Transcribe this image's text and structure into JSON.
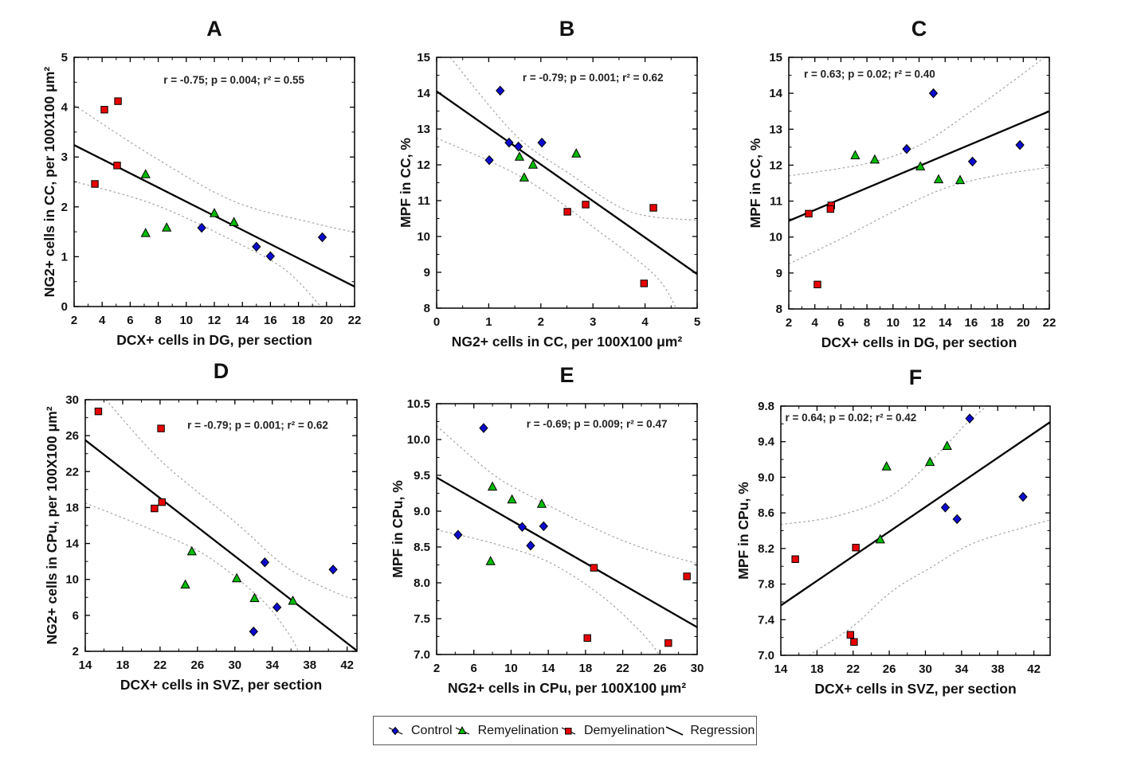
{
  "figure": {
    "background": "#ffffff",
    "colors": {
      "control": "#0b0bd0",
      "remyelination": "#00bb00",
      "demyelination": "#e80000",
      "marker_outline": "#000000",
      "regression_line": "#000000",
      "confidence_band": "#9a9a9a"
    },
    "legend": {
      "items": [
        {
          "label": "Control",
          "marker": "diamond",
          "color": "#0b0bd0"
        },
        {
          "label": "Remyelination",
          "marker": "triangle",
          "color": "#00bb00"
        },
        {
          "label": "Demyelination",
          "marker": "square",
          "color": "#e80000"
        },
        {
          "label": "Regression",
          "marker": "line",
          "color": "#000000"
        }
      ]
    }
  },
  "chart_data": [
    {
      "id": "A",
      "type": "scatter",
      "title": "A",
      "annotation": "r = -0.75; p = 0.004; r² = 0.55",
      "annotation_anchor": [
        0.57,
        0.105
      ],
      "xlabel": "DCX+ cells in DG, per section",
      "ylabel": "NG2+ cells in CC, per 100X100 μm²",
      "xlim": [
        2,
        22
      ],
      "ylim": [
        0,
        5
      ],
      "xticks": [
        2,
        4,
        6,
        8,
        10,
        12,
        14,
        16,
        18,
        20,
        22
      ],
      "yticks": [
        0,
        1,
        2,
        3,
        4,
        5
      ],
      "ytick_decimals": 0,
      "series": [
        {
          "name": "Control",
          "marker": "diamond",
          "points": [
            [
              11.1,
              1.58
            ],
            [
              15.0,
              1.2
            ],
            [
              16.0,
              1.01
            ],
            [
              19.7,
              1.39
            ]
          ]
        },
        {
          "name": "Remyelination",
          "marker": "triangle",
          "points": [
            [
              7.1,
              2.65
            ],
            [
              12.0,
              1.87
            ],
            [
              13.4,
              1.69
            ],
            [
              7.1,
              1.47
            ],
            [
              8.6,
              1.58
            ]
          ]
        },
        {
          "name": "Demyelination",
          "marker": "square",
          "points": [
            [
              4.16,
              3.95
            ],
            [
              5.13,
              4.12
            ],
            [
              5.07,
              2.83
            ],
            [
              3.48,
              2.46
            ]
          ]
        }
      ],
      "regression": [
        [
          2,
          3.24
        ],
        [
          22,
          0.4
        ]
      ],
      "ci_upper": [
        [
          2,
          4.04
        ],
        [
          7.7,
          3.0
        ],
        [
          13.4,
          2.11
        ],
        [
          19,
          1.68
        ],
        [
          22,
          1.49
        ]
      ],
      "ci_lower": [
        [
          2,
          2.51
        ],
        [
          7.7,
          2.05
        ],
        [
          13.4,
          1.31
        ],
        [
          17,
          0.75
        ],
        [
          19.6,
          0
        ]
      ]
    },
    {
      "id": "B",
      "type": "scatter",
      "title": "B",
      "annotation": "r = -0.79; p = 0.001; r² = 0.62",
      "annotation_anchor": [
        0.6,
        0.095
      ],
      "xlabel": "NG2+ cells in CC, per 100X100 μm²",
      "ylabel": "MPF in CC, %",
      "xlim": [
        0,
        5
      ],
      "ylim": [
        8,
        15
      ],
      "xticks": [
        0,
        1,
        2,
        3,
        4,
        5
      ],
      "yticks": [
        8,
        9,
        10,
        11,
        12,
        13,
        14,
        15
      ],
      "ytick_decimals": 0,
      "series": [
        {
          "name": "Control",
          "marker": "diamond",
          "points": [
            [
              1.22,
              14.07
            ],
            [
              1.39,
              12.62
            ],
            [
              1.57,
              12.51
            ],
            [
              2.02,
              12.62
            ],
            [
              1.01,
              12.13
            ]
          ]
        },
        {
          "name": "Remyelination",
          "marker": "triangle",
          "points": [
            [
              1.59,
              12.22
            ],
            [
              1.85,
              12.0
            ],
            [
              2.68,
              12.31
            ],
            [
              1.68,
              11.64
            ]
          ]
        },
        {
          "name": "Demyelination",
          "marker": "square",
          "points": [
            [
              2.51,
              10.69
            ],
            [
              2.86,
              10.89
            ],
            [
              4.16,
              10.8
            ],
            [
              3.98,
              8.69
            ]
          ]
        }
      ],
      "regression": [
        [
          0,
          14.05
        ],
        [
          5,
          8.95
        ]
      ],
      "ci_upper": [
        [
          0.26,
          15
        ],
        [
          1.5,
          12.85
        ],
        [
          2.5,
          11.8
        ],
        [
          3.7,
          10.7
        ],
        [
          5,
          10.45
        ]
      ],
      "ci_lower": [
        [
          0,
          12.75
        ],
        [
          1.7,
          11.6
        ],
        [
          3.2,
          10.05
        ],
        [
          4.2,
          8.9
        ],
        [
          4.6,
          8.0
        ]
      ]
    },
    {
      "id": "C",
      "type": "scatter",
      "title": "C",
      "annotation": "r = 0.63; p = 0.02; r² = 0.40",
      "annotation_anchor": [
        0.31,
        0.08
      ],
      "xlabel": "DCX+ cells in DG, per section",
      "ylabel": "MPF in CC, %",
      "xlim": [
        2,
        22
      ],
      "ylim": [
        8,
        15
      ],
      "xticks": [
        2,
        4,
        6,
        8,
        10,
        12,
        14,
        16,
        18,
        20,
        22
      ],
      "yticks": [
        8,
        9,
        10,
        11,
        12,
        13,
        14,
        15
      ],
      "ytick_decimals": 0,
      "series": [
        {
          "name": "Control",
          "marker": "diamond",
          "points": [
            [
              11.05,
              12.45
            ],
            [
              13.1,
              14.0
            ],
            [
              16.1,
              12.1
            ],
            [
              19.74,
              12.56
            ]
          ]
        },
        {
          "name": "Remyelination",
          "marker": "triangle",
          "points": [
            [
              7.1,
              12.27
            ],
            [
              8.6,
              12.15
            ],
            [
              12.1,
              11.96
            ],
            [
              13.5,
              11.6
            ],
            [
              15.15,
              11.58
            ]
          ]
        },
        {
          "name": "Demyelination",
          "marker": "square",
          "points": [
            [
              3.53,
              10.65
            ],
            [
              5.26,
              10.88
            ],
            [
              5.2,
              10.78
            ],
            [
              4.2,
              8.68
            ]
          ]
        }
      ],
      "regression": [
        [
          2,
          10.45
        ],
        [
          22,
          13.5
        ]
      ],
      "ci_upper": [
        [
          2,
          11.7
        ],
        [
          8,
          12.05
        ],
        [
          12,
          12.55
        ],
        [
          16,
          13.5
        ],
        [
          20,
          14.55
        ],
        [
          21.6,
          15
        ]
      ],
      "ci_lower": [
        [
          2,
          9.25
        ],
        [
          6,
          9.95
        ],
        [
          10,
          10.7
        ],
        [
          14,
          11.36
        ],
        [
          18,
          11.72
        ],
        [
          22,
          11.94
        ]
      ]
    },
    {
      "id": "D",
      "type": "scatter",
      "title": "D",
      "annotation": "r = -0.79; p = 0.001; r² = 0.62",
      "annotation_anchor": [
        0.635,
        0.115
      ],
      "xlabel": "DCX+ cells in SVZ, per section",
      "ylabel": "NG2+ cells in CPu, per 100X100 μm²",
      "xlim": [
        14,
        43.05
      ],
      "ylim": [
        2,
        30
      ],
      "xticks": [
        14,
        18,
        22,
        26,
        30,
        34,
        38,
        42
      ],
      "yticks": [
        2,
        6,
        10,
        14,
        18,
        22,
        26,
        30
      ],
      "ytick_decimals": 0,
      "series": [
        {
          "name": "Control",
          "marker": "diamond",
          "points": [
            [
              33.2,
              11.9
            ],
            [
              40.5,
              11.1
            ],
            [
              34.5,
              6.9
            ],
            [
              32.0,
              4.2
            ]
          ]
        },
        {
          "name": "Remyelination",
          "marker": "triangle",
          "points": [
            [
              25.4,
              13.1
            ],
            [
              24.7,
              9.4
            ],
            [
              30.2,
              10.1
            ],
            [
              32.1,
              7.9
            ],
            [
              36.2,
              7.6
            ]
          ]
        },
        {
          "name": "Demyelination",
          "marker": "square",
          "points": [
            [
              15.4,
              28.7
            ],
            [
              22.1,
              26.8
            ],
            [
              22.2,
              18.6
            ],
            [
              21.4,
              17.9
            ]
          ]
        }
      ],
      "regression": [
        [
          14,
          25.5
        ],
        [
          43,
          2.1
        ]
      ],
      "ci_upper": [
        [
          16.2,
          30
        ],
        [
          22.2,
          23.1
        ],
        [
          30,
          16.4
        ],
        [
          35.6,
          11.3
        ],
        [
          41.3,
          8.3
        ],
        [
          43,
          7.9
        ]
      ],
      "ci_lower": [
        [
          14,
          18.5
        ],
        [
          21.4,
          15.4
        ],
        [
          27,
          12.6
        ],
        [
          32.7,
          7.9
        ],
        [
          35.6,
          4.2
        ],
        [
          36.8,
          2
        ]
      ]
    },
    {
      "id": "E",
      "type": "scatter",
      "title": "E",
      "annotation": "r = -0.69; p = 0.009; r² = 0.47",
      "annotation_anchor": [
        0.615,
        0.095
      ],
      "xlabel": "NG2+ cells in CPu, per 100X100 μm²",
      "ylabel": "MPF in CPu, %",
      "xlim": [
        2,
        30
      ],
      "ylim": [
        7.0,
        10.5
      ],
      "xticks": [
        2,
        6,
        10,
        14,
        18,
        22,
        26,
        30
      ],
      "yticks": [
        7.0,
        7.5,
        8.0,
        8.5,
        9.0,
        9.5,
        10.0,
        10.5
      ],
      "ytick_decimals": 1,
      "series": [
        {
          "name": "Control",
          "marker": "diamond",
          "points": [
            [
              7.05,
              10.16
            ],
            [
              4.3,
              8.67
            ],
            [
              11.2,
              8.78
            ],
            [
              13.5,
              8.79
            ],
            [
              12.1,
              8.52
            ]
          ]
        },
        {
          "name": "Remyelination",
          "marker": "triangle",
          "points": [
            [
              8.0,
              9.34
            ],
            [
              10.1,
              9.16
            ],
            [
              13.3,
              9.1
            ],
            [
              7.8,
              8.3
            ]
          ]
        },
        {
          "name": "Demyelination",
          "marker": "square",
          "points": [
            [
              18.9,
              8.21
            ],
            [
              28.9,
              8.09
            ],
            [
              18.2,
              7.23
            ],
            [
              26.9,
              7.16
            ]
          ]
        }
      ],
      "regression": [
        [
          2,
          9.47
        ],
        [
          30,
          7.38
        ]
      ],
      "ci_upper": [
        [
          2,
          10.19
        ],
        [
          8,
          9.52
        ],
        [
          13,
          9.15
        ],
        [
          20,
          8.7
        ],
        [
          25,
          8.45
        ],
        [
          30,
          8.27
        ]
      ],
      "ci_lower": [
        [
          2,
          8.74
        ],
        [
          8.4,
          8.54
        ],
        [
          14.2,
          8.28
        ],
        [
          19.9,
          7.8
        ],
        [
          24.2,
          7.28
        ],
        [
          25.9,
          7.0
        ]
      ]
    },
    {
      "id": "F",
      "type": "scatter",
      "title": "F",
      "annotation": "r = 0.64; p = 0.02; r² = 0.42",
      "annotation_anchor": [
        0.26,
        0.06
      ],
      "xlabel": "DCX+ cells in SVZ, per section",
      "ylabel": "MPF in CPu, %",
      "xlim": [
        14,
        43.8
      ],
      "ylim": [
        7.0,
        9.8
      ],
      "xticks": [
        14,
        18,
        22,
        26,
        30,
        34,
        38,
        42
      ],
      "yticks": [
        7.0,
        7.4,
        7.8,
        8.2,
        8.6,
        9.0,
        9.4,
        9.8
      ],
      "ytick_decimals": 1,
      "series": [
        {
          "name": "Control",
          "marker": "diamond",
          "points": [
            [
              34.9,
              9.66
            ],
            [
              40.8,
              8.78
            ],
            [
              32.2,
              8.66
            ],
            [
              33.5,
              8.53
            ]
          ]
        },
        {
          "name": "Remyelination",
          "marker": "triangle",
          "points": [
            [
              25.7,
              9.12
            ],
            [
              30.5,
              9.17
            ],
            [
              32.4,
              9.35
            ],
            [
              25.0,
              8.3
            ]
          ]
        },
        {
          "name": "Demyelination",
          "marker": "square",
          "points": [
            [
              15.6,
              8.08
            ],
            [
              22.3,
              8.21
            ],
            [
              21.7,
              7.23
            ],
            [
              22.1,
              7.15
            ]
          ]
        }
      ],
      "regression": [
        [
          14,
          7.56
        ],
        [
          43.8,
          9.62
        ]
      ],
      "ci_upper": [
        [
          14,
          8.47
        ],
        [
          20,
          8.56
        ],
        [
          26,
          8.78
        ],
        [
          30.5,
          9.17
        ],
        [
          34.5,
          9.6
        ],
        [
          36.8,
          9.8
        ]
      ],
      "ci_lower": [
        [
          17.1,
          7.0
        ],
        [
          21.9,
          7.32
        ],
        [
          26.3,
          7.72
        ],
        [
          30.5,
          7.98
        ],
        [
          35.1,
          8.25
        ],
        [
          41,
          8.44
        ],
        [
          43.8,
          8.52
        ]
      ]
    }
  ]
}
